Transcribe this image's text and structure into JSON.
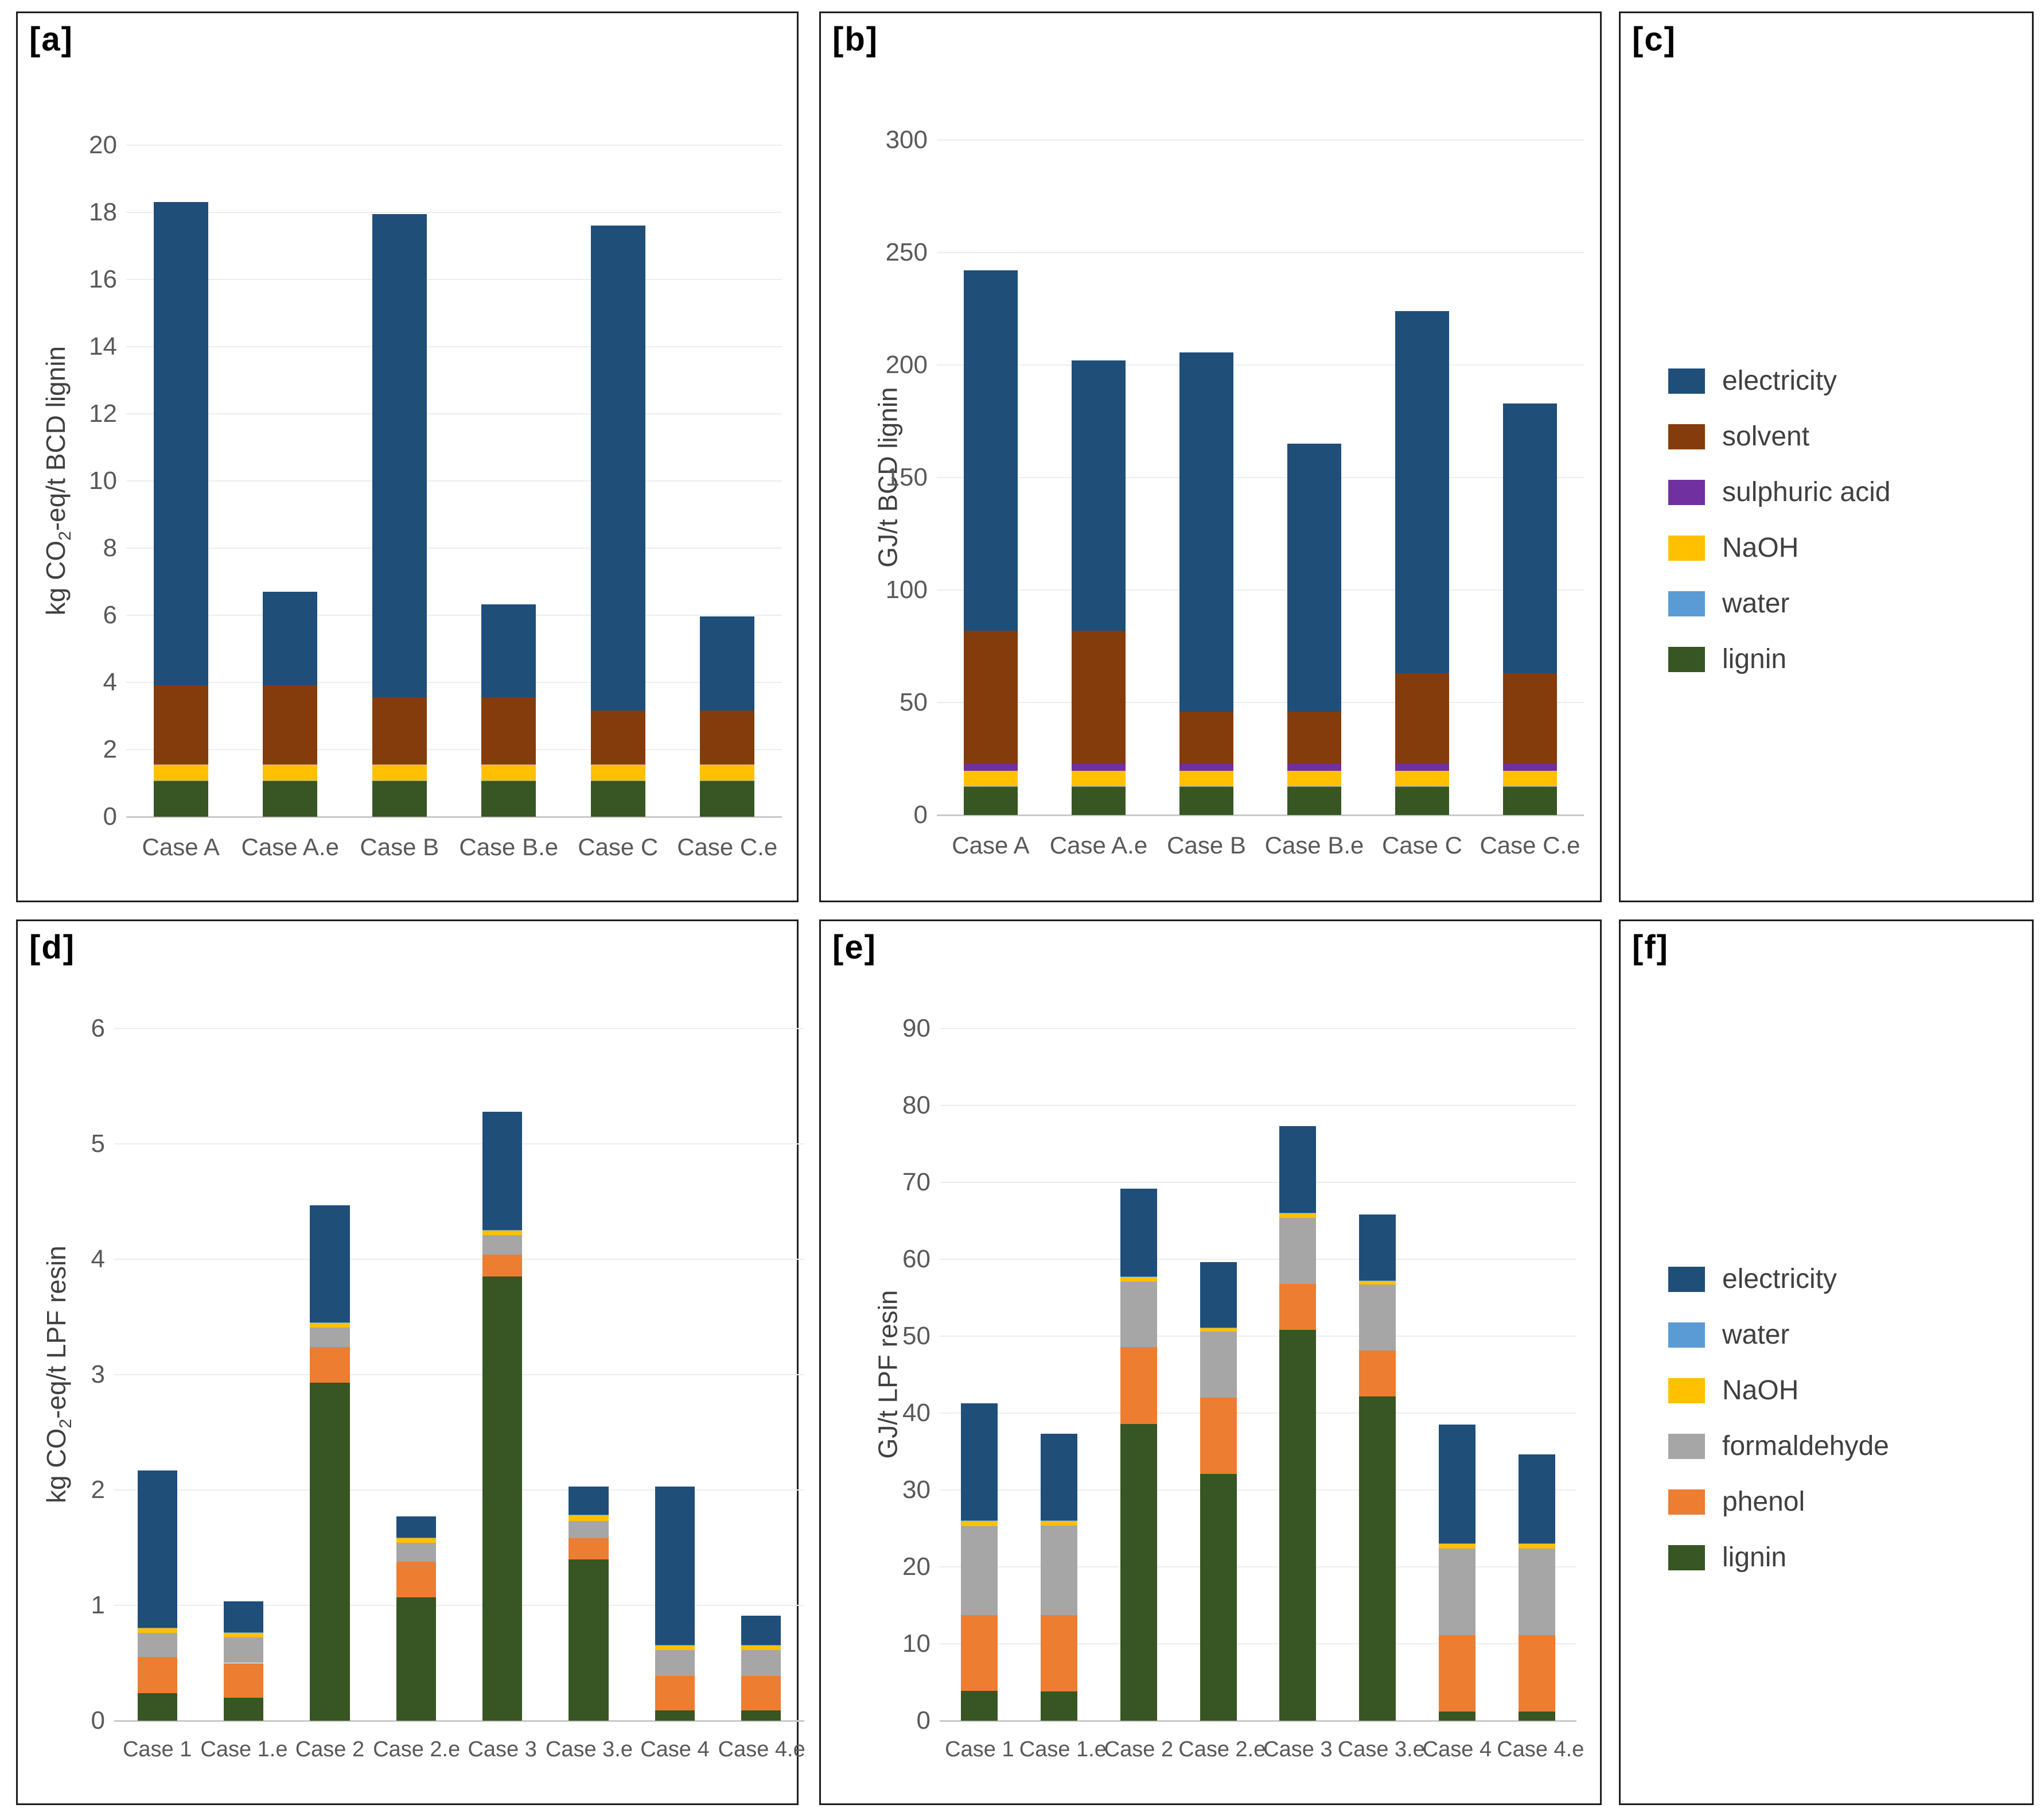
{
  "page": {
    "background": "#ffffff"
  },
  "panels": {
    "a": {
      "label": "[a]"
    },
    "b": {
      "label": "[b]"
    },
    "c": {
      "label": "[c]"
    },
    "d": {
      "label": "[d]"
    },
    "e": {
      "label": "[e]"
    },
    "f": {
      "label": "[f]"
    }
  },
  "colors": {
    "electricity": "#1F4E79",
    "solvent": "#843C0C",
    "sulphuric_acid": "#7030A0",
    "NaOH": "#FFC000",
    "water": "#5B9BD5",
    "lignin": "#375623",
    "formaldehyde": "#A6A6A6",
    "phenol": "#ED7D31",
    "grid": "#EDEDED",
    "axis_text": "#595959"
  },
  "legends": [
    {
      "panel": "c",
      "items": [
        {
          "name": "electricity",
          "color": "#1F4E79"
        },
        {
          "name": "solvent",
          "color": "#843C0C"
        },
        {
          "name": "sulphuric acid",
          "color": "#7030A0"
        },
        {
          "name": "NaOH",
          "color": "#FFC000"
        },
        {
          "name": "water",
          "color": "#5B9BD5"
        },
        {
          "name": "lignin",
          "color": "#375623"
        }
      ]
    },
    {
      "panel": "f",
      "items": [
        {
          "name": "electricity",
          "color": "#1F4E79"
        },
        {
          "name": "water",
          "color": "#5B9BD5"
        },
        {
          "name": "NaOH",
          "color": "#FFC000"
        },
        {
          "name": "formaldehyde",
          "color": "#A6A6A6"
        },
        {
          "name": "phenol",
          "color": "#ED7D31"
        },
        {
          "name": "lignin",
          "color": "#375623"
        }
      ]
    }
  ],
  "chart_data": [
    {
      "panel": "a",
      "type": "bar",
      "stacked": true,
      "title": "[a]",
      "ylabel": "kg CO2-eq/t BCD lignin",
      "ylabel_pre": "kg CO",
      "ylabel_sub": "2",
      "ylabel_post": "-eq/t BCD lignin",
      "xlabel": "",
      "ylim": [
        0,
        20
      ],
      "ytick_step": 2,
      "grid": true,
      "legend_position": "panel-c",
      "categories": [
        "Case A",
        "Case A.e",
        "Case B",
        "Case B.e",
        "Case C",
        "Case C.e"
      ],
      "series": [
        {
          "name": "lignin",
          "color": "#375623",
          "values": [
            1.06,
            1.06,
            1.06,
            1.06,
            1.06,
            1.06
          ]
        },
        {
          "name": "water",
          "color": "#5B9BD5",
          "values": [
            0.01,
            0.01,
            0.01,
            0.01,
            0.01,
            0.01
          ]
        },
        {
          "name": "NaOH",
          "color": "#FFC000",
          "values": [
            0.48,
            0.48,
            0.48,
            0.48,
            0.48,
            0.48
          ]
        },
        {
          "name": "sulphuric acid",
          "color": "#7030A0",
          "values": [
            0.04,
            0.04,
            0.04,
            0.04,
            0.04,
            0.04
          ]
        },
        {
          "name": "solvent",
          "color": "#843C0C",
          "values": [
            2.33,
            2.33,
            1.96,
            1.96,
            1.58,
            1.58
          ]
        },
        {
          "name": "electricity",
          "color": "#1F4E79",
          "values": [
            14.39,
            2.78,
            14.4,
            2.78,
            14.43,
            2.8
          ]
        }
      ],
      "bar_totals": [
        18.31,
        6.7,
        17.95,
        6.33,
        17.6,
        5.97
      ]
    },
    {
      "panel": "b",
      "type": "bar",
      "stacked": true,
      "title": "[b]",
      "ylabel": "GJ/t BCD lignin",
      "ylabel_pre": "GJ/t BCD lignin",
      "ylabel_sub": "",
      "ylabel_post": "",
      "xlabel": "",
      "ylim": [
        0,
        300
      ],
      "ytick_step": 50,
      "grid": true,
      "legend_position": "panel-c",
      "categories": [
        "Case A",
        "Case A.e",
        "Case B",
        "Case B.e",
        "Case C",
        "Case C.e"
      ],
      "series": [
        {
          "name": "lignin",
          "color": "#375623",
          "values": [
            12.5,
            12.5,
            12.5,
            12.5,
            12.5,
            12.5
          ]
        },
        {
          "name": "water",
          "color": "#5B9BD5",
          "values": [
            0.3,
            0.3,
            0.3,
            0.3,
            0.3,
            0.3
          ]
        },
        {
          "name": "NaOH",
          "color": "#FFC000",
          "values": [
            6.8,
            6.8,
            6.8,
            6.8,
            6.8,
            6.8
          ]
        },
        {
          "name": "sulphuric acid",
          "color": "#7030A0",
          "values": [
            3.0,
            3.0,
            3.0,
            3.0,
            3.0,
            3.0
          ]
        },
        {
          "name": "solvent",
          "color": "#843C0C",
          "values": [
            59.4,
            59.4,
            23.4,
            23.4,
            40.4,
            40.4
          ]
        },
        {
          "name": "electricity",
          "color": "#1F4E79",
          "values": [
            160.0,
            120.0,
            159.5,
            119.0,
            161.0,
            120.0
          ]
        }
      ],
      "bar_totals": [
        242,
        202,
        205.5,
        165,
        224,
        183
      ]
    },
    {
      "panel": "d",
      "type": "bar",
      "stacked": true,
      "title": "[d]",
      "ylabel": "kg CO2-eq/t LPF resin",
      "ylabel_pre": "kg CO",
      "ylabel_sub": "2",
      "ylabel_post": "-eq/t LPF resin",
      "xlabel": "",
      "ylim": [
        0,
        6
      ],
      "ytick_step": 1,
      "grid": true,
      "legend_position": "panel-f",
      "categories": [
        "Case 1",
        "Case 1.e",
        "Case 2",
        "Case 2.e",
        "Case 3",
        "Case 3.e",
        "Case 4",
        "Case 4.e"
      ],
      "series": [
        {
          "name": "lignin",
          "color": "#375623",
          "values": [
            0.24,
            0.2,
            2.93,
            1.07,
            3.85,
            1.4,
            0.09,
            0.09
          ]
        },
        {
          "name": "phenol",
          "color": "#ED7D31",
          "values": [
            0.31,
            0.3,
            0.31,
            0.31,
            0.19,
            0.18,
            0.3,
            0.3
          ]
        },
        {
          "name": "formaldehyde",
          "color": "#A6A6A6",
          "values": [
            0.21,
            0.22,
            0.17,
            0.16,
            0.17,
            0.15,
            0.22,
            0.22
          ]
        },
        {
          "name": "NaOH",
          "color": "#FFC000",
          "values": [
            0.04,
            0.04,
            0.04,
            0.04,
            0.04,
            0.05,
            0.04,
            0.04
          ]
        },
        {
          "name": "water",
          "color": "#5B9BD5",
          "values": [
            0.005,
            0.005,
            0.005,
            0.005,
            0.005,
            0.005,
            0.005,
            0.005
          ]
        },
        {
          "name": "electricity",
          "color": "#1F4E79",
          "values": [
            1.365,
            0.27,
            1.015,
            0.185,
            1.025,
            0.245,
            1.375,
            0.255
          ]
        }
      ],
      "bar_totals": [
        2.17,
        1.04,
        4.47,
        1.77,
        5.28,
        2.03,
        2.03,
        0.91
      ]
    },
    {
      "panel": "e",
      "type": "bar",
      "stacked": true,
      "title": "[e]",
      "ylabel": "GJ/t LPF resin",
      "ylabel_pre": "GJ/t LPF resin",
      "ylabel_sub": "",
      "ylabel_post": "",
      "xlabel": "",
      "ylim": [
        0,
        90
      ],
      "ytick_step": 10,
      "grid": true,
      "legend_position": "panel-f",
      "categories": [
        "Case 1",
        "Case 1.e",
        "Case 2",
        "Case 2.e",
        "Case 3",
        "Case 3.e",
        "Case 4",
        "Case 4.e"
      ],
      "series": [
        {
          "name": "lignin",
          "color": "#375623",
          "values": [
            3.9,
            3.8,
            38.6,
            32.1,
            50.8,
            42.2,
            1.2,
            1.2
          ]
        },
        {
          "name": "phenol",
          "color": "#ED7D31",
          "values": [
            9.8,
            9.9,
            10.0,
            9.9,
            6.0,
            5.9,
            9.9,
            9.9
          ]
        },
        {
          "name": "formaldehyde",
          "color": "#A6A6A6",
          "values": [
            11.6,
            11.7,
            8.5,
            8.6,
            8.6,
            8.6,
            11.3,
            11.3
          ]
        },
        {
          "name": "NaOH",
          "color": "#FFC000",
          "values": [
            0.7,
            0.6,
            0.6,
            0.5,
            0.6,
            0.5,
            0.6,
            0.6
          ]
        },
        {
          "name": "water",
          "color": "#5B9BD5",
          "values": [
            0.05,
            0.05,
            0.05,
            0.05,
            0.05,
            0.05,
            0.05,
            0.05
          ]
        },
        {
          "name": "electricity",
          "color": "#1F4E79",
          "values": [
            15.25,
            11.25,
            11.45,
            8.45,
            11.25,
            8.55,
            15.45,
            11.55
          ]
        }
      ],
      "bar_totals": [
        41.3,
        37.3,
        69.2,
        59.6,
        77.3,
        65.8,
        38.5,
        34.6
      ]
    }
  ]
}
